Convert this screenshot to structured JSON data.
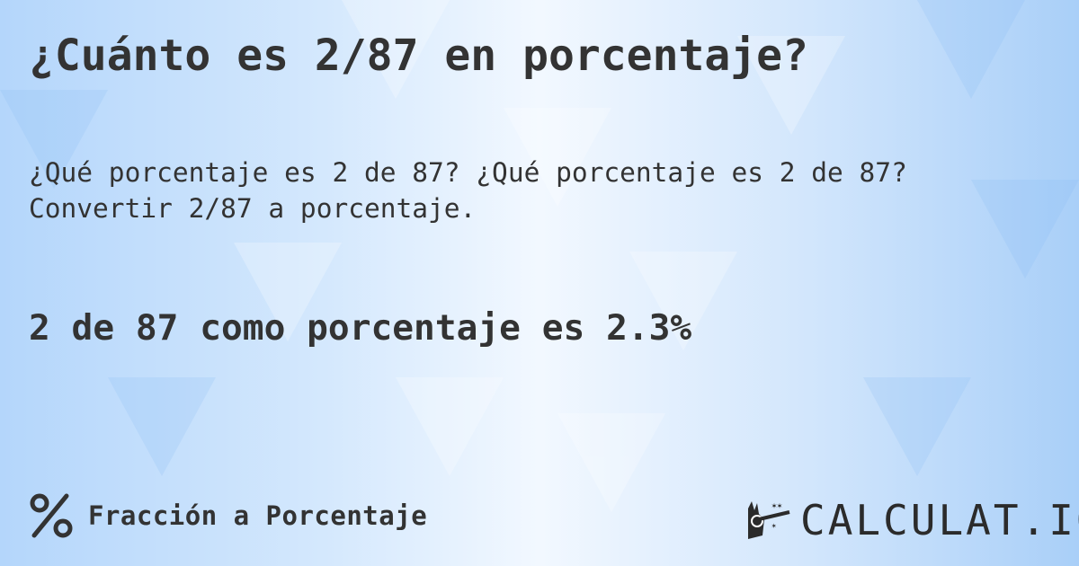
{
  "title": "¿Cuánto es 2/87 en porcentaje?",
  "subtitle_line1": "¿Qué porcentaje es 2 de 87? ¿Qué porcentaje es 2 de 87?",
  "subtitle_line2": "Convertir 2/87 a porcentaje.",
  "result": "2 de 87 como porcentaje es 2.3%",
  "footer": {
    "icon": "percent-icon",
    "label": "Fracción a Porcentaje"
  },
  "logo": {
    "text": "CALCULAT.IO",
    "icon": "magic-hand-icon"
  },
  "colors": {
    "text": "#333333",
    "background_light": "#f2f8ff",
    "background_blue": "#a9cff8"
  }
}
